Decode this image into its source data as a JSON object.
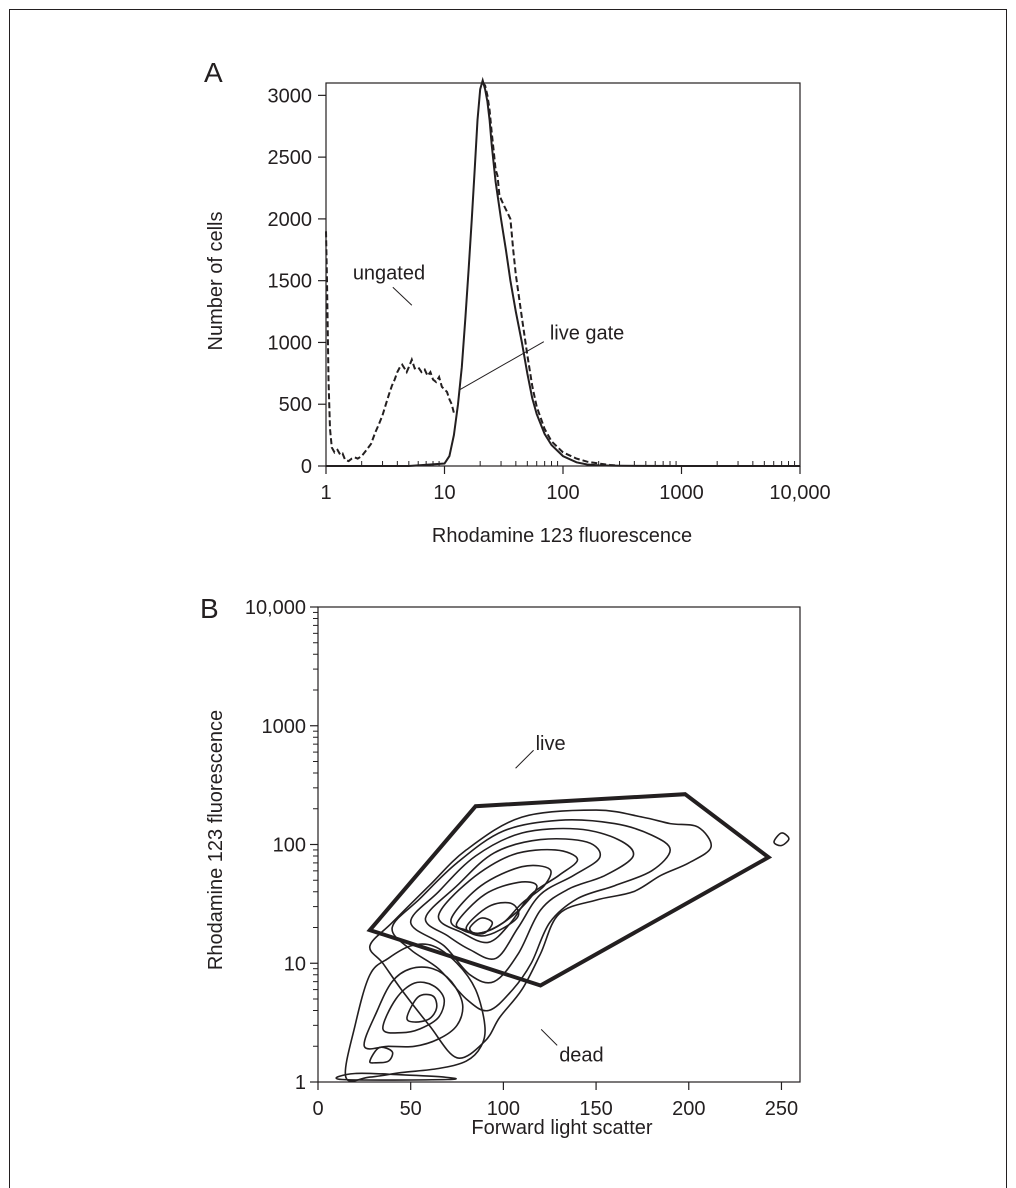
{
  "chart_data": [
    {
      "panel": "A",
      "type": "line",
      "xlabel": "Rhodamine 123 fluorescence",
      "ylabel": "Number of cells",
      "xscale": "log",
      "xlim": [
        1,
        10000
      ],
      "ylim": [
        0,
        3100
      ],
      "x_ticks": [
        "1",
        "10",
        "100",
        "1000",
        "10,000"
      ],
      "x_tick_values": [
        1,
        10,
        100,
        1000,
        10000
      ],
      "y_ticks": [
        "0",
        "500",
        "1000",
        "1500",
        "2000",
        "2500",
        "3000"
      ],
      "y_tick_values": [
        0,
        500,
        1000,
        1500,
        2000,
        2500,
        3000
      ],
      "grid": false,
      "colors": {
        "ink": "#231f20"
      },
      "series": [
        {
          "name": "ungated",
          "style": "dashed",
          "x": [
            1,
            1.02,
            1.05,
            1.08,
            1.12,
            1.18,
            1.25,
            1.32,
            1.38,
            1.45,
            1.55,
            1.65,
            1.75,
            1.85,
            2.0,
            2.2,
            2.4,
            2.6,
            2.8,
            3.0,
            3.2,
            3.4,
            3.6,
            3.8,
            4.0,
            4.2,
            4.4,
            4.6,
            4.8,
            5.0,
            5.3,
            5.6,
            6.0,
            6.4,
            6.8,
            7.2,
            7.6,
            8.0,
            8.5,
            9.0,
            9.5,
            10.0,
            10.5,
            11.0,
            11.5,
            12.0
          ],
          "y": [
            1900,
            1500,
            700,
            300,
            150,
            110,
            130,
            90,
            100,
            50,
            40,
            60,
            70,
            60,
            80,
            130,
            180,
            270,
            340,
            410,
            500,
            580,
            650,
            700,
            760,
            800,
            820,
            790,
            760,
            800,
            860,
            790,
            800,
            760,
            780,
            730,
            760,
            700,
            680,
            720,
            640,
            620,
            600,
            540,
            500,
            430
          ],
          "x2": [
            21,
            22,
            23,
            24,
            25,
            26,
            27,
            28,
            29,
            30,
            32,
            34,
            36,
            38,
            40,
            45,
            50,
            55,
            60,
            70,
            80,
            100,
            130,
            160,
            200,
            250,
            290
          ],
          "y2": [
            3100,
            3080,
            3000,
            2880,
            2700,
            2550,
            2400,
            2350,
            2200,
            2160,
            2100,
            2050,
            2000,
            1750,
            1550,
            1200,
            900,
            650,
            480,
            300,
            200,
            110,
            60,
            35,
            20,
            8,
            3
          ]
        },
        {
          "name": "live gate",
          "style": "solid",
          "x": [
            1,
            2,
            5,
            10,
            11,
            12,
            13,
            14,
            15,
            16,
            17,
            18,
            19,
            20,
            21,
            22,
            23,
            24,
            25,
            27,
            30,
            33,
            36,
            40,
            45,
            50,
            55,
            60,
            70,
            80,
            100,
            130,
            160,
            200,
            300,
            1000,
            10000
          ],
          "y": [
            0,
            0,
            0,
            20,
            80,
            250,
            500,
            800,
            1200,
            1600,
            2000,
            2400,
            2800,
            3050,
            3120,
            3050,
            2950,
            2800,
            2600,
            2300,
            2000,
            1750,
            1500,
            1250,
            1000,
            750,
            550,
            420,
            260,
            170,
            80,
            30,
            12,
            5,
            2,
            0,
            0
          ]
        }
      ],
      "annotations": [
        {
          "text": "ungated",
          "x": 5.0,
          "y": 880
        },
        {
          "text": "live gate",
          "x": 14.0,
          "y": 650
        }
      ]
    },
    {
      "panel": "B",
      "type": "scatter",
      "subtype": "contour",
      "xlabel": "Forward light scatter",
      "ylabel": "Rhodamine 123 fluorescence",
      "yscale": "log",
      "xlim": [
        0,
        260
      ],
      "ylim": [
        1,
        10000
      ],
      "x_ticks": [
        "0",
        "50",
        "100",
        "150",
        "200",
        "250"
      ],
      "x_tick_values": [
        0,
        50,
        100,
        150,
        200,
        250
      ],
      "y_ticks": [
        "1",
        "10",
        "100",
        "1000",
        "10,000"
      ],
      "y_tick_values": [
        1,
        10,
        100,
        1000,
        10000
      ],
      "grid": false,
      "gates": [
        {
          "name": "live",
          "points": [
            [
              28,
              19
            ],
            [
              85,
              210
            ],
            [
              198,
              265
            ],
            [
              243,
              78
            ],
            [
              120,
              6.5
            ]
          ]
        }
      ],
      "annotations": [
        {
          "text": "live",
          "x": 85,
          "y": 210
        },
        {
          "text": "dead",
          "x": 115,
          "y": 3.5
        }
      ],
      "contours": [
        {
          "label": "live population",
          "center": [
            86,
            22
          ],
          "points": [
            [
              28,
              14
            ],
            [
              40,
              22
            ],
            [
              60,
              45
            ],
            [
              80,
              90
            ],
            [
              110,
              170
            ],
            [
              150,
              195
            ],
            [
              175,
              170
            ],
            [
              190,
              150
            ],
            [
              205,
              140
            ],
            [
              212,
              95
            ],
            [
              200,
              70
            ],
            [
              185,
              55
            ],
            [
              170,
              40
            ],
            [
              150,
              34
            ],
            [
              130,
              26
            ],
            [
              120,
              12
            ],
            [
              110,
              6
            ],
            [
              98,
              3.5
            ],
            [
              90,
              2.2
            ],
            [
              75,
              1.6
            ],
            [
              60,
              3
            ],
            [
              45,
              6
            ],
            [
              35,
              10
            ]
          ]
        },
        {
          "label": "live population",
          "center": [
            86,
            22
          ],
          "points": [
            [
              40,
              20
            ],
            [
              55,
              35
            ],
            [
              75,
              70
            ],
            [
              100,
              130
            ],
            [
              130,
              160
            ],
            [
              160,
              150
            ],
            [
              180,
              120
            ],
            [
              190,
              90
            ],
            [
              180,
              60
            ],
            [
              160,
              45
            ],
            [
              140,
              35
            ],
            [
              125,
              22
            ],
            [
              115,
              10
            ],
            [
              105,
              6
            ],
            [
              92,
              4
            ],
            [
              80,
              5
            ],
            [
              65,
              9
            ],
            [
              50,
              13
            ]
          ]
        },
        {
          "label": "live population",
          "center": [
            86,
            22
          ],
          "points": [
            [
              50,
              22
            ],
            [
              65,
              40
            ],
            [
              85,
              80
            ],
            [
              110,
              125
            ],
            [
              140,
              135
            ],
            [
              162,
              110
            ],
            [
              170,
              80
            ],
            [
              155,
              55
            ],
            [
              135,
              42
            ],
            [
              120,
              28
            ],
            [
              108,
              12
            ],
            [
              95,
              7
            ],
            [
              82,
              8
            ],
            [
              68,
              14
            ]
          ]
        },
        {
          "label": "live population",
          "center": [
            86,
            22
          ],
          "points": [
            [
              58,
              24
            ],
            [
              75,
              45
            ],
            [
              95,
              85
            ],
            [
              120,
              110
            ],
            [
              145,
              105
            ],
            [
              152,
              78
            ],
            [
              138,
              55
            ],
            [
              120,
              38
            ],
            [
              108,
              20
            ],
            [
              96,
              11
            ],
            [
              82,
              13
            ],
            [
              70,
              17
            ]
          ]
        },
        {
          "label": "live population",
          "center": [
            86,
            22
          ],
          "points": [
            [
              65,
              25
            ],
            [
              82,
              50
            ],
            [
              105,
              82
            ],
            [
              128,
              90
            ],
            [
              140,
              75
            ],
            [
              130,
              55
            ],
            [
              115,
              38
            ],
            [
              104,
              22
            ],
            [
              92,
              15
            ],
            [
              78,
              18
            ]
          ]
        },
        {
          "label": "live population",
          "center": [
            86,
            22
          ],
          "points": [
            [
              72,
              24
            ],
            [
              88,
              45
            ],
            [
              110,
              65
            ],
            [
              125,
              62
            ],
            [
              122,
              45
            ],
            [
              110,
              32
            ],
            [
              100,
              22
            ],
            [
              88,
              18
            ],
            [
              78,
              19
            ]
          ]
        },
        {
          "label": "live population",
          "center": [
            86,
            22
          ],
          "points": [
            [
              75,
              22
            ],
            [
              90,
              38
            ],
            [
              108,
              48
            ],
            [
              118,
              45
            ],
            [
              112,
              32
            ],
            [
              100,
              22
            ],
            [
              88,
              18
            ],
            [
              80,
              19
            ]
          ]
        },
        {
          "label": "live population",
          "center": [
            86,
            22
          ],
          "points": [
            [
              80,
              20
            ],
            [
              92,
              30
            ],
            [
              104,
              32
            ],
            [
              108,
              25
            ],
            [
              98,
              19
            ],
            [
              88,
              17
            ]
          ]
        },
        {
          "label": "live population",
          "center": [
            86,
            22
          ],
          "points": [
            [
              82,
              20
            ],
            [
              88,
              24
            ],
            [
              94,
              22
            ],
            [
              90,
              18
            ],
            [
              84,
              18
            ]
          ]
        },
        {
          "label": "dead population",
          "center": [
            58,
            4.5
          ],
          "points": [
            [
              15,
              1.1
            ],
            [
              20,
              3
            ],
            [
              28,
              8
            ],
            [
              38,
              11
            ],
            [
              50,
              14
            ],
            [
              62,
              14
            ],
            [
              75,
              10
            ],
            [
              85,
              6
            ],
            [
              90,
              3
            ],
            [
              88,
              2
            ],
            [
              80,
              1.5
            ],
            [
              65,
              1.3
            ],
            [
              45,
              1.2
            ],
            [
              28,
              1.1
            ]
          ]
        },
        {
          "label": "dead population",
          "center": [
            58,
            4.5
          ],
          "points": [
            [
              25,
              2
            ],
            [
              32,
              4
            ],
            [
              40,
              7
            ],
            [
              50,
              9
            ],
            [
              62,
              9
            ],
            [
              72,
              7
            ],
            [
              78,
              4.5
            ],
            [
              75,
              3
            ],
            [
              65,
              2.3
            ],
            [
              52,
              2
            ],
            [
              38,
              2
            ]
          ]
        },
        {
          "label": "dead population",
          "center": [
            58,
            4.5
          ],
          "points": [
            [
              35,
              2.8
            ],
            [
              42,
              5
            ],
            [
              52,
              6.8
            ],
            [
              62,
              6.5
            ],
            [
              68,
              5
            ],
            [
              65,
              3.5
            ],
            [
              55,
              2.8
            ],
            [
              45,
              2.6
            ]
          ]
        },
        {
          "label": "dead population",
          "center": [
            58,
            4.5
          ],
          "points": [
            [
              48,
              3.5
            ],
            [
              54,
              5.2
            ],
            [
              62,
              5.3
            ],
            [
              64,
              4.2
            ],
            [
              60,
              3.4
            ],
            [
              52,
              3.2
            ]
          ]
        },
        {
          "label": "edge population",
          "center": [
            17,
            1.1
          ],
          "points": [
            [
              13,
              1.05
            ],
            [
              20,
              1.18
            ],
            [
              45,
              1.15
            ],
            [
              68,
              1.1
            ],
            [
              70,
              1.05
            ]
          ]
        },
        {
          "label": "small island",
          "center": [
            35,
            1.7
          ],
          "points": [
            [
              28,
              1.5
            ],
            [
              33,
              1.95
            ],
            [
              40,
              1.8
            ],
            [
              38,
              1.5
            ],
            [
              31,
              1.45
            ]
          ]
        },
        {
          "label": "small island",
          "center": [
            250,
            110
          ],
          "points": [
            [
              246,
              105
            ],
            [
              250,
              125
            ],
            [
              254,
              112
            ],
            [
              250,
              98
            ]
          ]
        }
      ]
    }
  ]
}
